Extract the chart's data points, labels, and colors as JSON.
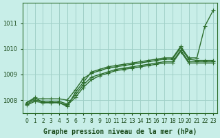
{
  "title": "Graphe pression niveau de la mer (hPa)",
  "bg_color": "#c8eee8",
  "grid_color": "#a0d0c8",
  "line_color": "#2d6e2d",
  "text_color": "#1a4a1a",
  "xlim": [
    -0.5,
    23.5
  ],
  "ylim": [
    1007.5,
    1011.8
  ],
  "yticks": [
    1008,
    1009,
    1010,
    1011
  ],
  "xtick_labels": [
    "0",
    "1",
    "2",
    "3",
    "4",
    "5",
    "6",
    "7",
    "8",
    "9",
    "10",
    "11",
    "12",
    "13",
    "14",
    "15",
    "16",
    "17",
    "18",
    "19",
    "20",
    "21",
    "22",
    "23"
  ],
  "series": [
    {
      "x": [
        0,
        1,
        2,
        3,
        4,
        5,
        6,
        7,
        8,
        9,
        10,
        11,
        12,
        13,
        14,
        15,
        16,
        17,
        18,
        19,
        20,
        21,
        22,
        23
      ],
      "y": [
        1007.9,
        1008.1,
        1007.9,
        1007.9,
        1007.9,
        1007.75,
        1008.3,
        1008.7,
        1009.1,
        1009.2,
        1009.3,
        1009.35,
        1009.4,
        1009.45,
        1009.5,
        1009.55,
        1009.6,
        1009.65,
        1009.65,
        1010.1,
        1009.65,
        1009.65,
        1010.9,
        1011.5
      ]
    },
    {
      "x": [
        0,
        1,
        2,
        3,
        4,
        5,
        6,
        7,
        8,
        9,
        10,
        11,
        12,
        13,
        14,
        15,
        16,
        17,
        18,
        19,
        20,
        21,
        22,
        23
      ],
      "y": [
        1007.9,
        1008.05,
        1008.05,
        1008.05,
        1008.05,
        1008.0,
        1008.4,
        1008.85,
        1009.05,
        1009.15,
        1009.25,
        1009.3,
        1009.35,
        1009.4,
        1009.45,
        1009.5,
        1009.55,
        1009.6,
        1009.6,
        1010.05,
        1009.6,
        1009.55,
        1009.55,
        1009.55
      ]
    },
    {
      "x": [
        0,
        1,
        2,
        3,
        4,
        5,
        6,
        7,
        8,
        9,
        10,
        11,
        12,
        13,
        14,
        15,
        16,
        17,
        18,
        19,
        20,
        21,
        22,
        23
      ],
      "y": [
        1007.85,
        1008.0,
        1007.95,
        1007.95,
        1007.95,
        1007.85,
        1008.2,
        1008.6,
        1008.9,
        1009.0,
        1009.1,
        1009.2,
        1009.25,
        1009.3,
        1009.35,
        1009.4,
        1009.45,
        1009.5,
        1009.5,
        1009.95,
        1009.5,
        1009.5,
        1009.5,
        1009.5
      ]
    },
    {
      "x": [
        0,
        1,
        2,
        3,
        4,
        5,
        6,
        7,
        8,
        9,
        10,
        11,
        12,
        13,
        14,
        15,
        16,
        17,
        18,
        19,
        20,
        21,
        22,
        23
      ],
      "y": [
        1007.8,
        1007.95,
        1007.9,
        1007.9,
        1007.9,
        1007.8,
        1008.1,
        1008.5,
        1008.8,
        1008.95,
        1009.05,
        1009.15,
        1009.2,
        1009.25,
        1009.3,
        1009.35,
        1009.4,
        1009.45,
        1009.45,
        1009.9,
        1009.45,
        1009.45,
        1009.45,
        1009.45
      ]
    }
  ],
  "marker": "+",
  "marker_size": 4,
  "linewidth": 1.0,
  "title_fontsize": 7,
  "tick_fontsize": 6
}
